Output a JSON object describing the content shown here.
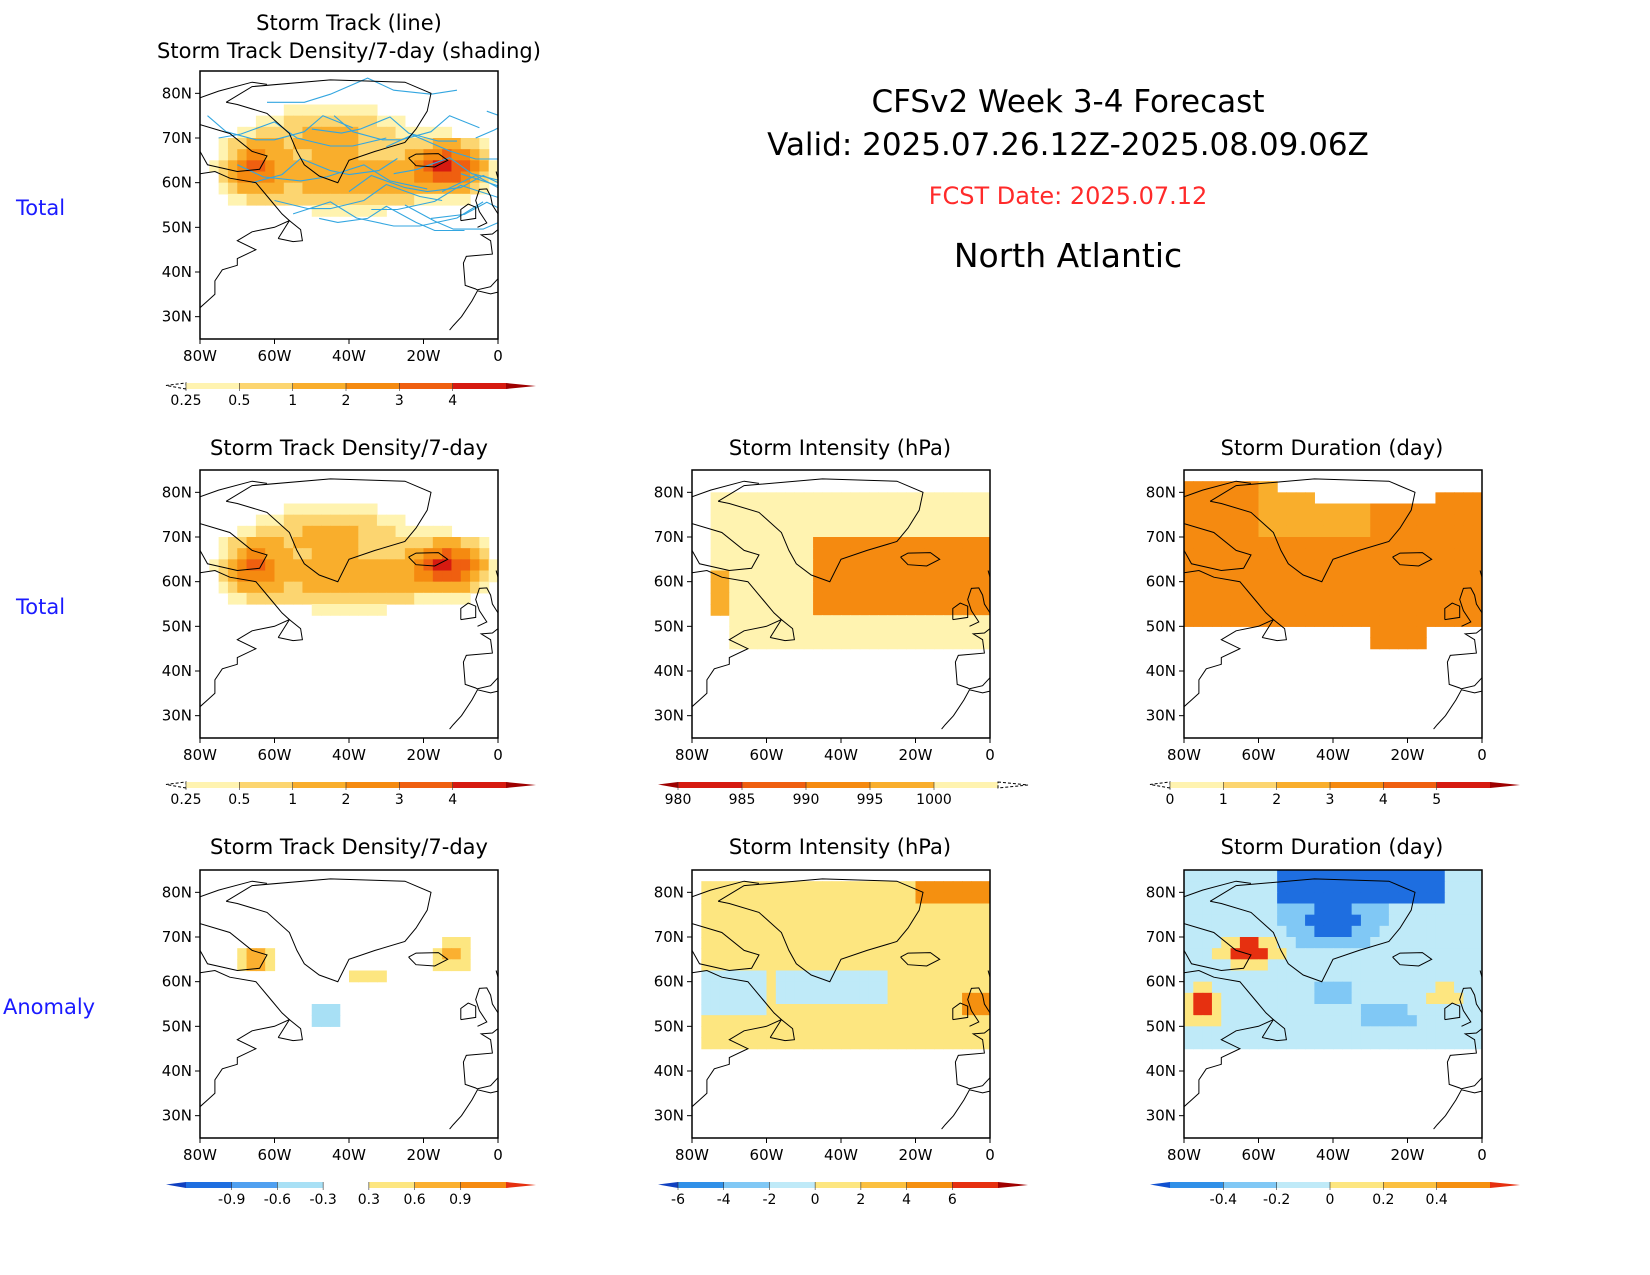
{
  "header": {
    "line1": "CFSv2  Week  3-4  Forecast",
    "line2": "Valid:  2025.07.26.12Z-2025.08.09.06Z",
    "fcst": "FCST Date: 2025.07.12",
    "region": "North  Atlantic"
  },
  "row_labels": [
    "Total",
    "Total",
    "Anomaly"
  ],
  "axes": {
    "lat_labels": [
      "80N",
      "70N",
      "60N",
      "50N",
      "40N",
      "30N"
    ],
    "lon_labels": [
      "80W",
      "60W",
      "40W",
      "20W",
      "0"
    ]
  },
  "panels": [
    {
      "id": "p0",
      "title1": "Storm  Track  (line)",
      "title2": "Storm  Track  Density/7-day  (shading)",
      "field": "density",
      "tracks": true,
      "colorbar": {
        "labels": [
          "0.25",
          "0.5",
          "1",
          "2",
          "3",
          "4"
        ],
        "colors": [
          "#fff3b0",
          "#fcd570",
          "#f9ae2c",
          "#f58a10",
          "#ef5f10",
          "#d61a10"
        ],
        "lower": "dash",
        "upper": "#9e0000"
      }
    },
    {
      "id": "p1",
      "title1": "Storm  Track  Density/7-day",
      "field": "density",
      "colorbar": {
        "labels": [
          "0.25",
          "0.5",
          "1",
          "2",
          "3",
          "4"
        ],
        "colors": [
          "#fff3b0",
          "#fcd570",
          "#f9ae2c",
          "#f58a10",
          "#ef5f10",
          "#d61a10"
        ],
        "lower": "dash",
        "upper": "#9e0000"
      }
    },
    {
      "id": "p2",
      "title1": "Storm  Intensity  (hPa)",
      "field": "intensity",
      "colorbar": {
        "labels": [
          "980",
          "985",
          "990",
          "995",
          "1000"
        ],
        "colors": [
          "#d61a10",
          "#ef5f10",
          "#f58a10",
          "#f9ae2c",
          "#fff3b0"
        ],
        "lower": "#9e0000",
        "upper": "dash"
      }
    },
    {
      "id": "p3",
      "title1": "Storm  Duration  (day)",
      "field": "duration",
      "colorbar": {
        "labels": [
          "0",
          "1",
          "2",
          "3",
          "4",
          "5"
        ],
        "colors": [
          "#fff3b0",
          "#fcd570",
          "#f9ae2c",
          "#f58a10",
          "#ef5f10",
          "#d61a10"
        ],
        "lower": "dash",
        "upper": "#9e0000"
      }
    },
    {
      "id": "p4",
      "title1": "Storm  Track  Density/7-day",
      "field": "dens_anom",
      "colorbar": {
        "labels": [
          "-0.9",
          "-0.6",
          "-0.3",
          "0.3",
          "0.6",
          "0.9"
        ],
        "colors": [
          "#1e6ee0",
          "#50a0f0",
          "#a8e0f5",
          "#ffffff",
          "#fde680",
          "#fbb030",
          "#f58a10"
        ],
        "lower": "#1040c0",
        "upper": "#e63010"
      }
    },
    {
      "id": "p5",
      "title1": "Storm  Intensity  (hPa)",
      "field": "int_anom",
      "colorbar": {
        "labels": [
          "-6",
          "-4",
          "-2",
          "0",
          "2",
          "4",
          "6"
        ],
        "colors": [
          "#3090e8",
          "#80c8f5",
          "#bfeaf8",
          "#fde680",
          "#fbc040",
          "#f59010",
          "#e63010"
        ],
        "lower": "#1040c0",
        "upper": "#a00000"
      }
    },
    {
      "id": "p6",
      "title1": "Storm  Duration  (day)",
      "field": "dur_anom",
      "colorbar": {
        "labels": [
          "-0.4",
          "-0.2",
          "0",
          "0.2",
          "0.4"
        ],
        "colors": [
          "#3090e8",
          "#80c8f5",
          "#bfeaf8",
          "#fde680",
          "#fbc040",
          "#f59010"
        ],
        "lower": "#1050d0",
        "upper": "#e63010"
      }
    }
  ]
}
